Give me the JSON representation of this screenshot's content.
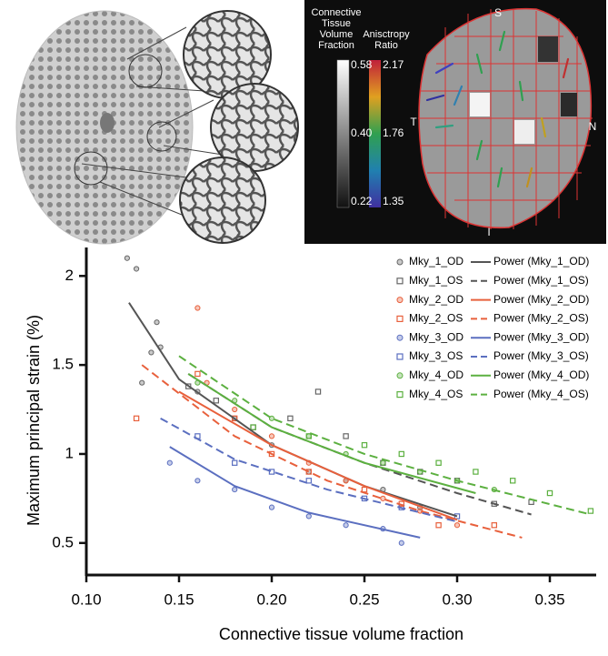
{
  "chart_data": {
    "type": "scatter",
    "x_label": "Connective tissue volume fraction",
    "y_label": "Maximum principal strain (%)",
    "xlim": [
      0.1,
      0.375
    ],
    "ylim": [
      0.32,
      2.16
    ],
    "xticks": [
      {
        "value": 0.1,
        "label": "0.10"
      },
      0.15,
      {
        "value": 0.2,
        "label": "0.20"
      },
      0.25,
      {
        "value": 0.3,
        "label": "0.30"
      },
      0.35
    ],
    "yticks": [
      0.5,
      1,
      1.5,
      2
    ],
    "legend": "upper right",
    "series": [
      {
        "name": "Mky_1_OD",
        "color": "#666666",
        "marker": "circle",
        "x": [
          0.122,
          0.127,
          0.13,
          0.135,
          0.138,
          0.14,
          0.16,
          0.18,
          0.2,
          0.22,
          0.24,
          0.26,
          0.28
        ],
        "values": [
          2.1,
          2.04,
          1.4,
          1.57,
          1.74,
          1.6,
          1.35,
          1.2,
          1.05,
          0.9,
          0.85,
          0.8,
          0.7
        ]
      },
      {
        "name": "Mky_1_OS",
        "color": "#666666",
        "marker": "square",
        "x": [
          0.155,
          0.17,
          0.19,
          0.21,
          0.225,
          0.24,
          0.26,
          0.28,
          0.3,
          0.32,
          0.34
        ],
        "values": [
          1.38,
          1.3,
          1.15,
          1.2,
          1.35,
          1.1,
          0.95,
          0.9,
          0.85,
          0.72,
          0.73
        ]
      },
      {
        "name": "Mky_2_OD",
        "color": "#e8603c",
        "marker": "circle",
        "x": [
          0.16,
          0.165,
          0.18,
          0.2,
          0.22,
          0.24,
          0.26,
          0.28,
          0.3
        ],
        "values": [
          1.82,
          1.4,
          1.25,
          1.1,
          0.95,
          0.85,
          0.75,
          0.68,
          0.6
        ]
      },
      {
        "name": "Mky_2_OS",
        "color": "#e8603c",
        "marker": "square",
        "x": [
          0.127,
          0.16,
          0.18,
          0.2,
          0.22,
          0.25,
          0.27,
          0.29,
          0.32
        ],
        "values": [
          1.2,
          1.45,
          1.2,
          1.0,
          0.9,
          0.8,
          0.72,
          0.6,
          0.6
        ]
      },
      {
        "name": "Mky_3_OD",
        "color": "#5b6fc0",
        "marker": "circle",
        "x": [
          0.145,
          0.16,
          0.18,
          0.2,
          0.22,
          0.24,
          0.26,
          0.27
        ],
        "values": [
          0.95,
          0.85,
          0.8,
          0.7,
          0.65,
          0.6,
          0.58,
          0.5
        ]
      },
      {
        "name": "Mky_3_OS",
        "color": "#5b6fc0",
        "marker": "square",
        "x": [
          0.16,
          0.18,
          0.2,
          0.22,
          0.25,
          0.27,
          0.3
        ],
        "values": [
          1.1,
          0.95,
          0.9,
          0.85,
          0.75,
          0.7,
          0.65
        ]
      },
      {
        "name": "Mky_4_OD",
        "color": "#5cb040",
        "marker": "circle",
        "x": [
          0.16,
          0.18,
          0.2,
          0.22,
          0.24,
          0.26,
          0.28,
          0.3,
          0.32
        ],
        "values": [
          1.4,
          1.3,
          1.2,
          1.1,
          1.0,
          0.95,
          0.9,
          0.85,
          0.8
        ]
      },
      {
        "name": "Mky_4_OS",
        "color": "#5cb040",
        "marker": "square",
        "x": [
          0.19,
          0.22,
          0.25,
          0.27,
          0.29,
          0.31,
          0.33,
          0.35,
          0.372
        ],
        "values": [
          1.15,
          1.1,
          1.05,
          1.0,
          0.95,
          0.9,
          0.85,
          0.78,
          0.68
        ]
      },
      {
        "name": "Power (Mky_1_OD)",
        "color": "#555555",
        "dash": false,
        "x": [
          0.123,
          0.15,
          0.2,
          0.25,
          0.3
        ],
        "values": [
          1.85,
          1.42,
          1.05,
          0.82,
          0.65
        ]
      },
      {
        "name": "Power (Mky_1_OS)",
        "color": "#555555",
        "dash": true,
        "x": [
          0.155,
          0.2,
          0.25,
          0.3,
          0.34
        ],
        "values": [
          1.45,
          1.15,
          0.95,
          0.78,
          0.66
        ]
      },
      {
        "name": "Power (Mky_2_OD)",
        "color": "#e8603c",
        "dash": false,
        "x": [
          0.15,
          0.2,
          0.25,
          0.3
        ],
        "values": [
          1.35,
          1.05,
          0.82,
          0.63
        ]
      },
      {
        "name": "Power (Mky_2_OS)",
        "color": "#e8603c",
        "dash": true,
        "x": [
          0.13,
          0.18,
          0.23,
          0.28,
          0.335
        ],
        "values": [
          1.5,
          1.1,
          0.85,
          0.68,
          0.53
        ]
      },
      {
        "name": "Power (Mky_3_OD)",
        "color": "#5b6fc0",
        "dash": false,
        "x": [
          0.145,
          0.18,
          0.22,
          0.28
        ],
        "values": [
          1.04,
          0.82,
          0.67,
          0.53
        ]
      },
      {
        "name": "Power (Mky_3_OS)",
        "color": "#5b6fc0",
        "dash": true,
        "x": [
          0.14,
          0.18,
          0.23,
          0.3
        ],
        "values": [
          1.2,
          0.97,
          0.8,
          0.62
        ]
      },
      {
        "name": "Power (Mky_4_OD)",
        "color": "#5cb040",
        "dash": false,
        "x": [
          0.155,
          0.2,
          0.25,
          0.31
        ],
        "values": [
          1.45,
          1.15,
          0.95,
          0.78
        ]
      },
      {
        "name": "Power (Mky_4_OS)",
        "color": "#5cb040",
        "dash": true,
        "x": [
          0.15,
          0.2,
          0.25,
          0.3,
          0.372
        ],
        "values": [
          1.55,
          1.2,
          1.0,
          0.85,
          0.66
        ]
      }
    ]
  },
  "inset": {
    "volume_fraction_title": [
      "Connective",
      "Tissue",
      "Volume",
      "Fraction"
    ],
    "volume_fraction_ticks": [
      0.58,
      {
        "value": 0.4,
        "label": "0.40"
      },
      0.22
    ],
    "anisotropy_title": [
      "Anisctropy",
      "Ratio"
    ],
    "anisotropy_ticks": [
      2.17,
      1.76,
      1.35
    ],
    "directions": {
      "superior": "S",
      "temporal": "T",
      "nasal": "N",
      "inferior": "I"
    }
  }
}
